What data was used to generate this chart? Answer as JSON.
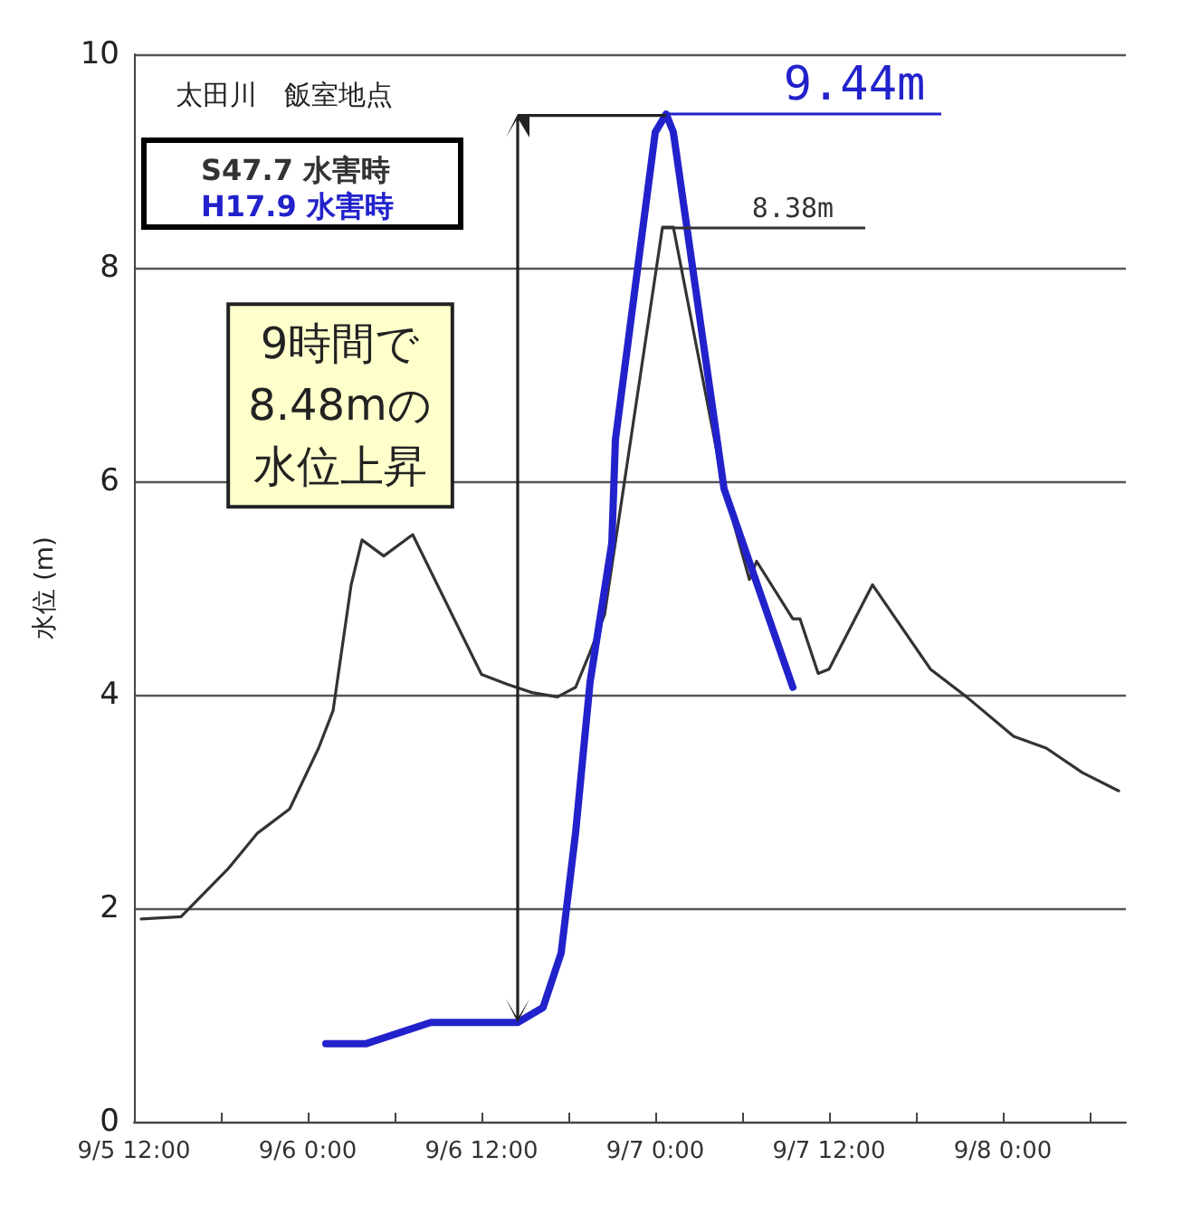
{
  "chart_data": {
    "type": "line",
    "title": "太田川　飯室地点",
    "ylabel": "水位 (m)",
    "xlim": [
      "--09-05T12:00",
      "--09-08T08:30"
    ],
    "xticks": [
      {
        "value": "--09-05T12:00",
        "label": "9/5 12:00"
      },
      {
        "value": "--09-05T18:00",
        "label": null
      },
      {
        "value": "--09-06T00:00",
        "label": "9/6 0:00"
      },
      {
        "value": "--09-06T06:00",
        "label": null
      },
      {
        "value": "--09-06T12:00",
        "label": "9/6 12:00"
      },
      {
        "value": "--09-06T18:00",
        "label": null
      },
      {
        "value": "--09-07T00:00",
        "label": "9/7 0:00"
      },
      {
        "value": "--09-07T06:00",
        "label": null
      },
      {
        "value": "--09-07T12:00",
        "label": "9/7 12:00"
      },
      {
        "value": "--09-07T18:00",
        "label": null
      },
      {
        "value": "--09-08T00:00",
        "label": "9/8 0:00"
      },
      {
        "value": "--09-08T06:00",
        "label": null
      }
    ],
    "ylim": [
      0,
      10
    ],
    "yticks": [
      0,
      2,
      4,
      6,
      8,
      10
    ],
    "grid": "y",
    "legend": "top left",
    "marker": "none",
    "series": [
      {
        "name": "S47.7 水害時",
        "color": "#333333",
        "x": [
          "--09-05T12:30",
          "--09-05T15:15",
          "--09-05T18:30",
          "--09-05T20:30",
          "--09-05T22:45",
          "--09-06T00:45",
          "--09-06T01:45",
          "--09-06T03:00",
          "--09-06T03:45",
          "--09-06T05:15",
          "--09-06T07:15",
          "--09-06T12:00",
          "--09-06T13:45",
          "--09-06T15:30",
          "--09-06T17:15",
          "--09-06T18:30",
          "--09-06T19:30",
          "--09-06T20:30",
          "--09-07T00:30",
          "--09-07T01:15",
          "--09-07T04:45",
          "--09-07T06:30",
          "--09-07T07:00",
          "--09-07T09:30",
          "--09-07T10:00",
          "--09-07T11:15",
          "--09-07T12:00",
          "--09-07T15:00",
          "--09-07T19:00",
          "--09-07T21:30",
          "--09-08T00:45",
          "--09-08T03:00",
          "--09-08T05:30",
          "--09-08T08:00"
        ],
        "values": [
          1.9,
          1.92,
          2.37,
          2.7,
          2.93,
          3.5,
          3.85,
          5.03,
          5.45,
          5.3,
          5.5,
          4.19,
          4.1,
          4.02,
          3.98,
          4.07,
          4.4,
          4.75,
          8.38,
          8.38,
          5.93,
          5.08,
          5.25,
          4.71,
          4.71,
          4.2,
          4.24,
          5.03,
          4.24,
          3.98,
          3.61,
          3.5,
          3.27,
          3.1
        ]
      },
      {
        "name": "H17.9 水害時",
        "color": "#2222cc",
        "x": [
          "--09-06T01:15",
          "--09-06T04:00",
          "--09-06T08:30",
          "--09-06T14:30",
          "--09-06T16:15",
          "--09-06T17:30",
          "--09-06T18:30",
          "--09-06T19:30",
          "--09-06T21:00",
          "--09-06T21:15",
          "--09-07T00:00",
          "--09-07T00:45",
          "--09-07T01:15",
          "--09-07T04:45",
          "--09-07T09:30"
        ],
        "values": [
          0.73,
          0.73,
          0.93,
          0.93,
          1.07,
          1.58,
          2.71,
          4.12,
          5.42,
          6.39,
          9.27,
          9.44,
          9.27,
          5.93,
          4.07
        ]
      }
    ],
    "annotations": [
      {
        "text": "9.44m",
        "x": "--09-07T00:45",
        "y": 9.44
      },
      {
        "text": "8.38m",
        "x": "--09-07T00:30",
        "y": 8.38
      },
      "9時間で",
      "8.48mの",
      "水位上昇"
    ]
  }
}
